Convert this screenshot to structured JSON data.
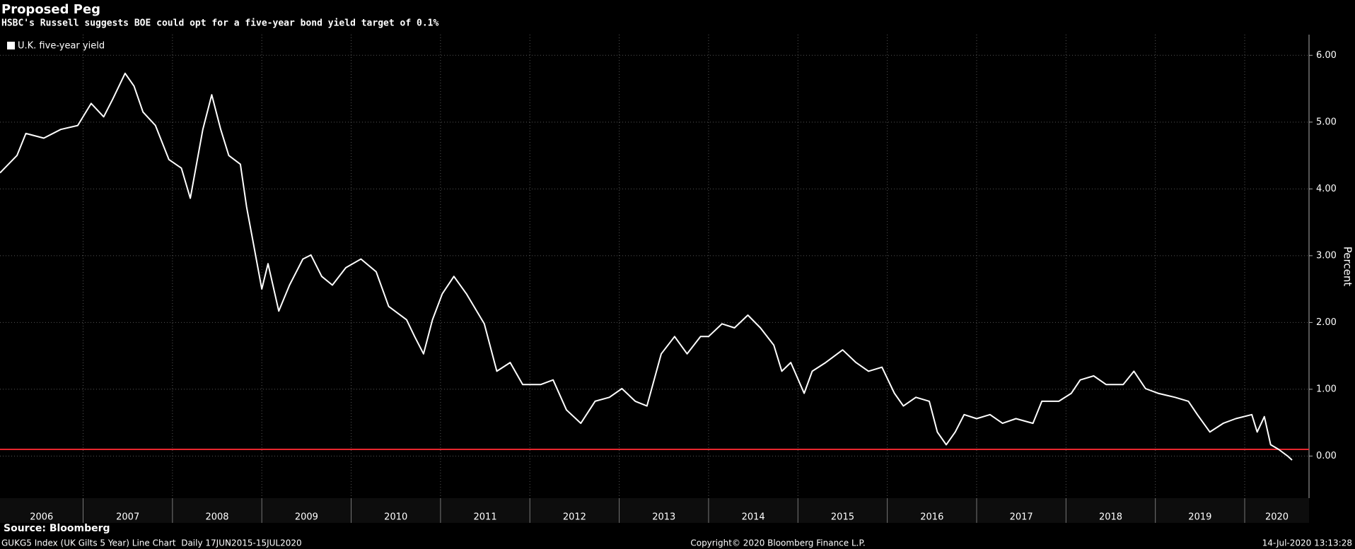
{
  "chart_data": {
    "type": "line",
    "title": "Proposed Peg",
    "subtitle": "HSBC's Russell suggests BOE could opt for a five-year bond yield target of 0.1%",
    "y_label": "Percent",
    "x": [
      2006.07,
      2006.26,
      2006.36,
      2006.56,
      2006.75,
      2006.94,
      2007.09,
      2007.23,
      2007.33,
      2007.47,
      2007.57,
      2007.67,
      2007.81,
      2007.96,
      2008.1,
      2008.2,
      2008.34,
      2008.44,
      2008.54,
      2008.63,
      2008.76,
      2008.83,
      2008.92,
      2009.0,
      2009.07,
      2009.19,
      2009.31,
      2009.46,
      2009.55,
      2009.67,
      2009.79,
      2009.94,
      2010.11,
      2010.28,
      2010.42,
      2010.62,
      2010.71,
      2010.81,
      2010.91,
      2011.02,
      2011.15,
      2011.29,
      2011.49,
      2011.63,
      2011.78,
      2011.92,
      2012.12,
      2012.26,
      2012.41,
      2012.57,
      2012.73,
      2012.89,
      2013.03,
      2013.18,
      2013.31,
      2013.47,
      2013.62,
      2013.76,
      2013.91,
      2014.0,
      2014.15,
      2014.29,
      2014.44,
      2014.58,
      2014.73,
      2014.82,
      2014.92,
      2015.07,
      2015.16,
      2015.31,
      2015.5,
      2015.65,
      2015.79,
      2015.94,
      2016.08,
      2016.18,
      2016.32,
      2016.47,
      2016.56,
      2016.66,
      2016.76,
      2016.86,
      2017.0,
      2017.15,
      2017.29,
      2017.44,
      2017.63,
      2017.73,
      2017.92,
      2018.06,
      2018.16,
      2018.31,
      2018.45,
      2018.64,
      2018.76,
      2018.89,
      2019.03,
      2019.22,
      2019.37,
      2019.47,
      2019.61,
      2019.76,
      2019.9,
      2020.08,
      2020.14,
      2020.22,
      2020.29,
      2020.38,
      2020.48,
      2020.53
    ],
    "series": [
      {
        "name": "U.K. five-year yield",
        "color": "#ffffff",
        "values": [
          4.24,
          4.5,
          4.83,
          4.76,
          4.89,
          4.95,
          5.28,
          5.08,
          5.34,
          5.73,
          5.54,
          5.15,
          4.95,
          4.44,
          4.31,
          3.86,
          4.89,
          5.41,
          4.89,
          4.5,
          4.37,
          3.73,
          3.08,
          2.5,
          2.88,
          2.17,
          2.56,
          2.95,
          3.01,
          2.69,
          2.56,
          2.82,
          2.95,
          2.76,
          2.24,
          2.04,
          1.79,
          1.53,
          2.04,
          2.43,
          2.69,
          2.43,
          1.98,
          1.27,
          1.4,
          1.07,
          1.07,
          1.14,
          0.69,
          0.49,
          0.82,
          0.88,
          1.01,
          0.82,
          0.75,
          1.53,
          1.79,
          1.53,
          1.79,
          1.79,
          1.98,
          1.92,
          2.11,
          1.92,
          1.66,
          1.27,
          1.4,
          0.94,
          1.27,
          1.4,
          1.59,
          1.4,
          1.27,
          1.33,
          0.94,
          0.75,
          0.88,
          0.82,
          0.36,
          0.17,
          0.36,
          0.62,
          0.56,
          0.62,
          0.49,
          0.56,
          0.49,
          0.82,
          0.82,
          0.94,
          1.14,
          1.2,
          1.07,
          1.07,
          1.27,
          1.01,
          0.94,
          0.88,
          0.82,
          0.62,
          0.36,
          0.49,
          0.56,
          0.62,
          0.36,
          0.59,
          0.17,
          0.1,
          0.0,
          -0.06
        ]
      }
    ],
    "reference_line": {
      "value": 0.1,
      "color": "#e8262e"
    },
    "xlim": [
      2006.07,
      2020.72
    ],
    "xticks": [
      2006,
      2007,
      2008,
      2009,
      2010,
      2011,
      2012,
      2013,
      2014,
      2015,
      2016,
      2017,
      2018,
      2019,
      2020
    ],
    "ylim": [
      -0.63,
      6.31
    ],
    "yticks": [
      {
        "value": 0,
        "label": "0.00"
      },
      {
        "value": 1,
        "label": "1.00"
      },
      {
        "value": 2,
        "label": "2.00"
      },
      {
        "value": 3,
        "label": "3.00"
      },
      {
        "value": 4,
        "label": "4.00"
      },
      {
        "value": 5,
        "label": "5.00"
      },
      {
        "value": 6,
        "label": "6.00"
      }
    ],
    "grid": true
  },
  "source": "Source: Bloomberg",
  "footer": {
    "left": "GUKG5 Index (UK Gilts 5 Year) Line Chart  Daily 17JUN2015-15JUL2020",
    "center": "Copyright© 2020 Bloomberg Finance L.P.",
    "right": "14-Jul-2020 13:13:28"
  }
}
